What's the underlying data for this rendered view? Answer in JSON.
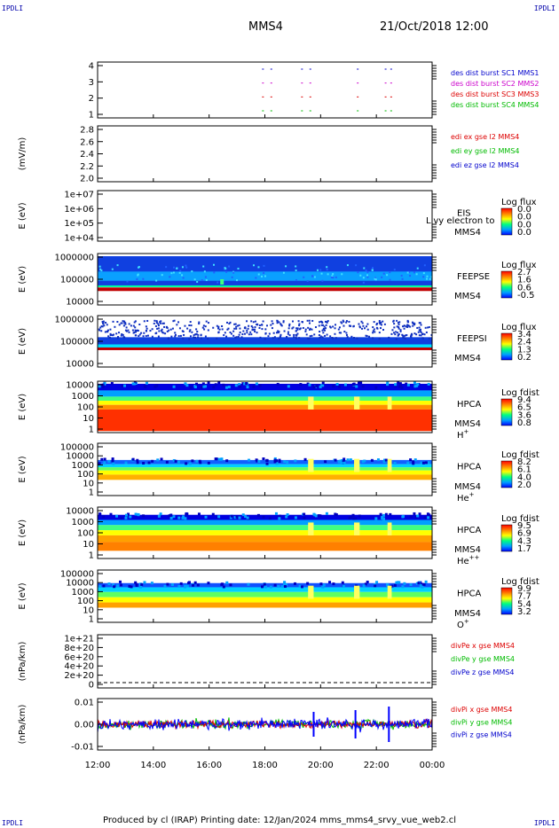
{
  "header": {
    "spacecraft": "MMS4",
    "datetime": "21/Oct/2018 12:00",
    "corner_label": "IPDLI"
  },
  "footer": {
    "text": "Produced by cl (IRAP)   Printing date: 12/Jan/2024   mms_mms4_srvy_vue_web2.cl"
  },
  "chart_data": [
    {
      "type": "scatter",
      "id": "burst",
      "ylabel": "",
      "yticks": [
        "1",
        "2",
        "3",
        "4"
      ],
      "legend": [
        {
          "text": "des dist burst SC1 MMS1",
          "color": "#0000cc"
        },
        {
          "text": "des dist burst SC2 MMS2",
          "color": "#cc00cc"
        },
        {
          "text": "des dist burst SC3 MMS3",
          "color": "#dd0000"
        },
        {
          "text": "des dist burst SC4 MMS4",
          "color": "#00bb00"
        }
      ],
      "burst_times_h": [
        17.9,
        18.2,
        19.3,
        19.6,
        21.3,
        22.3,
        22.5
      ]
    },
    {
      "type": "line",
      "id": "edi",
      "ylabel": "(mV/m)",
      "yticks": [
        "2.0",
        "2.2",
        "2.4",
        "2.6",
        "2.8"
      ],
      "legend": [
        {
          "text": "edi ex gse l2 MMS4",
          "color": "#dd0000"
        },
        {
          "text": "edi ey gse l2 MMS4",
          "color": "#00bb00"
        },
        {
          "text": "edi ez gse l2 MMS4",
          "color": "#0000cc"
        }
      ]
    },
    {
      "type": "heatmap",
      "id": "eis",
      "ylabel": "E (eV)",
      "yticks": [
        "1e+04",
        "1e+05",
        "1e+06",
        "1e+07"
      ],
      "instrument": [
        "EIS",
        "MMS4"
      ],
      "overlay": "Llvy electron to",
      "colorbar": {
        "title": "Log flux",
        "ticks": [
          "0.0",
          "0.0",
          "0.0",
          "0.0"
        ]
      }
    },
    {
      "type": "heatmap",
      "id": "feepse",
      "ylabel": "E (eV)",
      "yticks": [
        "10000",
        "100000",
        "1000000"
      ],
      "instrument": [
        "FEEPSE",
        "MMS4"
      ],
      "colorbar": {
        "title": "Log flux",
        "ticks": [
          "2.7",
          "1.6",
          "0.6",
          "-0.5"
        ]
      }
    },
    {
      "type": "heatmap",
      "id": "feepsi",
      "ylabel": "E (eV)",
      "yticks": [
        "10000",
        "100000",
        "1000000"
      ],
      "instrument": [
        "FEEPSI",
        "MMS4"
      ],
      "colorbar": {
        "title": "Log flux",
        "ticks": [
          "3.4",
          "2.4",
          "1.3",
          "0.2"
        ]
      }
    },
    {
      "type": "heatmap",
      "id": "hpca_h",
      "ylabel": "E (eV)",
      "yticks": [
        "1",
        "10",
        "100",
        "1000",
        "10000"
      ],
      "instrument": [
        "HPCA",
        "MMS4"
      ],
      "species": "H",
      "species_sup": "+",
      "colorbar": {
        "title": "Log fdist",
        "ticks": [
          "9.4",
          "6.5",
          "3.6",
          "0.8"
        ]
      }
    },
    {
      "type": "heatmap",
      "id": "hpca_he",
      "ylabel": "E (eV)",
      "yticks": [
        "1",
        "10",
        "100",
        "1000",
        "10000",
        "100000"
      ],
      "instrument": [
        "HPCA",
        "MMS4"
      ],
      "species": "He",
      "species_sup": "+",
      "colorbar": {
        "title": "Log fdist",
        "ticks": [
          "8.2",
          "6.1",
          "4.0",
          "2.0"
        ]
      }
    },
    {
      "type": "heatmap",
      "id": "hpca_he2",
      "ylabel": "E (eV)",
      "yticks": [
        "1",
        "10",
        "100",
        "1000",
        "10000"
      ],
      "instrument": [
        "HPCA",
        "MMS4"
      ],
      "species": "He",
      "species_sup": "++",
      "colorbar": {
        "title": "Log fdist",
        "ticks": [
          "9.5",
          "6.9",
          "4.3",
          "1.7"
        ]
      }
    },
    {
      "type": "heatmap",
      "id": "hpca_o",
      "ylabel": "E (eV)",
      "yticks": [
        "1",
        "10",
        "100",
        "1000",
        "10000",
        "100000"
      ],
      "instrument": [
        "HPCA",
        "MMS4"
      ],
      "species": "O",
      "species_sup": "+",
      "colorbar": {
        "title": "Log fdist",
        "ticks": [
          "9.9",
          "7.7",
          "5.4",
          "3.2"
        ]
      }
    },
    {
      "type": "line",
      "id": "divpe",
      "ylabel": "(nPa/km)",
      "yticks": [
        "0",
        "2e+20",
        "4e+20",
        "6e+20",
        "8e+20",
        "1e+21"
      ],
      "legend": [
        {
          "text": "divPe x gse MMS4",
          "color": "#dd0000"
        },
        {
          "text": "divPe y gse MMS4",
          "color": "#00bb00"
        },
        {
          "text": "divPe z gse MMS4",
          "color": "#0000cc"
        }
      ]
    },
    {
      "type": "line",
      "id": "divpi",
      "ylabel": "(nPa/km)",
      "yticks": [
        "-0.01",
        "0.00",
        "0.01"
      ],
      "legend": [
        {
          "text": "divPi x gse MMS4",
          "color": "#dd0000"
        },
        {
          "text": "divPi y gse MMS4",
          "color": "#00bb00"
        },
        {
          "text": "divPi z gse MMS4",
          "color": "#0000cc"
        }
      ]
    }
  ],
  "xaxis": {
    "ticks": [
      "12:00",
      "14:00",
      "16:00",
      "18:00",
      "20:00",
      "22:00",
      "00:00"
    ]
  }
}
